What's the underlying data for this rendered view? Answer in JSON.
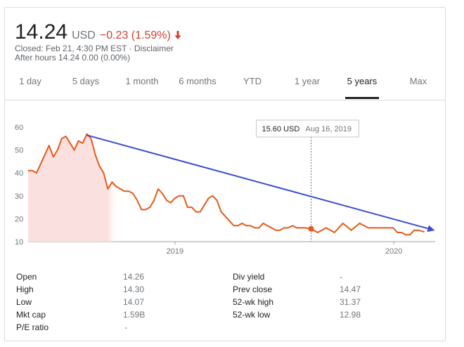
{
  "header": {
    "price": "14.24",
    "currency": "USD",
    "change": "−0.23 (1.59%)",
    "closed_line": "Closed: Feb 21, 4:30 PM EST · Disclaimer",
    "after_hours_line": "After hours 14.24 0.00 (0.00%)",
    "down_color": "#d23f31"
  },
  "tabs": [
    {
      "label": "1 day",
      "active": false
    },
    {
      "label": "5 days",
      "active": false
    },
    {
      "label": "1 month",
      "active": false
    },
    {
      "label": "6 months",
      "active": false
    },
    {
      "label": "YTD",
      "active": false
    },
    {
      "label": "1 year",
      "active": false
    },
    {
      "label": "5 years",
      "active": true
    },
    {
      "label": "Max",
      "active": false
    }
  ],
  "tooltip": {
    "price": "15.60 USD",
    "date": "Aug 16, 2019"
  },
  "chart_data": {
    "type": "area",
    "series": [
      {
        "x": [
          "2018-05-01",
          "2018-05-08",
          "2018-05-15",
          "2018-05-22",
          "2018-05-29",
          "2018-06-05",
          "2018-06-12",
          "2018-06-19",
          "2018-06-26",
          "2018-07-03",
          "2018-07-10",
          "2018-07-17",
          "2018-07-24",
          "2018-07-31",
          "2018-08-07",
          "2018-08-14",
          "2018-08-21",
          "2018-08-28",
          "2018-09-04",
          "2018-09-11",
          "2018-09-18",
          "2018-09-25",
          "2018-10-02",
          "2018-10-09",
          "2018-10-16",
          "2018-10-23",
          "2018-10-30",
          "2018-11-06",
          "2018-11-13",
          "2018-11-20",
          "2018-11-27",
          "2018-12-04",
          "2018-12-11",
          "2018-12-18",
          "2018-12-25",
          "2019-01-01",
          "2019-01-08",
          "2019-01-15",
          "2019-01-22",
          "2019-01-29",
          "2019-02-05",
          "2019-02-12",
          "2019-02-19",
          "2019-02-26",
          "2019-03-05",
          "2019-03-12",
          "2019-03-19",
          "2019-03-26",
          "2019-04-02",
          "2019-04-09",
          "2019-04-16",
          "2019-04-23",
          "2019-04-30",
          "2019-05-07",
          "2019-05-14",
          "2019-05-21",
          "2019-05-28",
          "2019-06-04",
          "2019-06-11",
          "2019-06-18",
          "2019-06-25",
          "2019-07-02",
          "2019-07-09",
          "2019-07-16",
          "2019-07-23",
          "2019-07-30",
          "2019-08-06",
          "2019-08-16",
          "2019-08-27",
          "2019-09-10",
          "2019-09-24",
          "2019-10-08",
          "2019-10-22",
          "2019-11-05",
          "2019-11-19",
          "2019-12-03",
          "2019-12-17",
          "2019-12-31",
          "2020-01-07",
          "2020-01-14",
          "2020-01-21",
          "2020-01-28",
          "2020-02-04",
          "2020-02-11",
          "2020-02-18",
          "2020-02-21"
        ],
        "values": [
          41,
          41,
          40,
          44,
          48,
          52,
          47,
          50,
          55,
          56,
          53,
          50,
          54,
          53,
          57,
          55,
          48,
          43,
          40,
          33,
          36,
          34,
          33,
          32,
          32,
          31,
          28,
          24,
          24,
          25,
          28,
          33,
          31,
          28,
          27,
          29,
          30,
          30,
          25,
          25,
          23,
          23,
          26,
          29,
          30,
          28,
          23,
          21,
          19,
          17,
          17,
          18,
          17,
          17,
          16,
          16,
          18,
          17,
          16,
          15,
          15,
          16,
          16,
          17,
          16,
          16,
          16,
          15.6,
          14,
          16,
          14,
          18,
          15,
          18,
          16,
          16,
          16,
          16,
          14,
          14,
          13,
          13,
          15,
          15,
          14.5,
          14.24
        ]
      }
    ],
    "ylim": [
      10,
      60
    ],
    "yticks": [
      10,
      20,
      30,
      40,
      50,
      60
    ],
    "xtick_labels": [
      {
        "label": "2019",
        "x": "2019-01-01"
      },
      {
        "label": "2020",
        "x": "2020-01-01"
      }
    ],
    "xlim": [
      "2018-05-01",
      "2020-03-10"
    ],
    "line_color": "#e8591a",
    "fill_color": "#fbe0e0",
    "marker": {
      "x": "2019-08-16",
      "y": 15.6
    },
    "trend_arrow": {
      "from": {
        "x": "2018-08-07",
        "y": 56.5
      },
      "to": {
        "x": "2020-03-08",
        "y": 15
      }
    },
    "trend_color": "#3b4bd4"
  },
  "stats": {
    "left": [
      {
        "label": "Open",
        "value": "14.26"
      },
      {
        "label": "High",
        "value": "14.30"
      },
      {
        "label": "Low",
        "value": "14.07"
      },
      {
        "label": "Mkt cap",
        "value": "1.59B"
      },
      {
        "label": "P/E ratio",
        "value": "-"
      }
    ],
    "right": [
      {
        "label": "Div yield",
        "value": "-"
      },
      {
        "label": "Prev close",
        "value": "14.47"
      },
      {
        "label": "52-wk high",
        "value": "31.37"
      },
      {
        "label": "52-wk low",
        "value": "12.98"
      }
    ]
  }
}
